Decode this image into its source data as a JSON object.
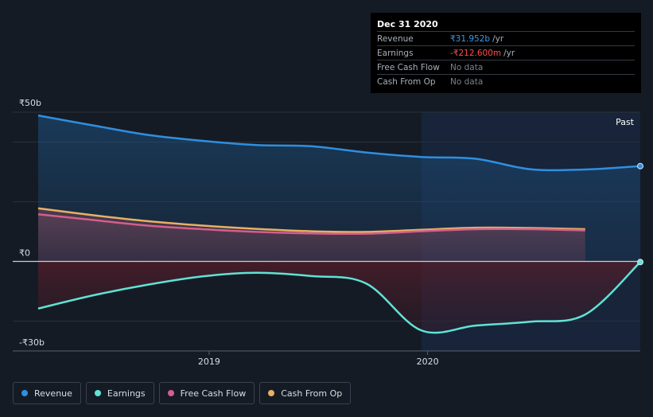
{
  "tooltip": {
    "date": "Dec 31 2020",
    "rows": [
      {
        "label": "Revenue",
        "value": "₹31.952b",
        "unit": "/yr",
        "color": "#3b9ae8"
      },
      {
        "label": "Earnings",
        "value": "-₹212.600m",
        "unit": "/yr",
        "color": "#ff4d4d"
      },
      {
        "label": "Free Cash Flow",
        "value": "No data",
        "unit": "",
        "color": "#7a818b"
      },
      {
        "label": "Cash From Op",
        "value": "No data",
        "unit": "",
        "color": "#7a818b"
      }
    ]
  },
  "legend": [
    {
      "label": "Revenue",
      "color": "#2f8fe0"
    },
    {
      "label": "Earnings",
      "color": "#5fe3d5"
    },
    {
      "label": "Free Cash Flow",
      "color": "#d45e8c"
    },
    {
      "label": "Cash From Op",
      "color": "#e8b063"
    }
  ],
  "chart_data": {
    "type": "area",
    "title": "",
    "xlabel": "",
    "ylabel": "",
    "x_ticks": [
      "2019",
      "2020"
    ],
    "y_ticks": [
      "₹50b",
      "₹0",
      "-₹30b"
    ],
    "ylim": [
      -30,
      50
    ],
    "past_label": "Past",
    "unit": "₹ billions",
    "legend_position": "bottom",
    "series": [
      {
        "name": "Revenue",
        "color": "#2f8fe0",
        "x": [
          "2018-03-31",
          "2018-06-30",
          "2018-09-30",
          "2018-12-31",
          "2019-03-31",
          "2019-06-30",
          "2019-09-30",
          "2019-12-31",
          "2020-03-31",
          "2020-06-30",
          "2020-09-30",
          "2020-12-31"
        ],
        "values": [
          48.9,
          45.6,
          42.4,
          40.4,
          39.0,
          38.6,
          36.5,
          35.0,
          34.4,
          30.9,
          30.8,
          31.95
        ]
      },
      {
        "name": "Earnings",
        "color": "#5fe3d5",
        "x": [
          "2018-03-31",
          "2018-06-30",
          "2018-09-30",
          "2018-12-31",
          "2019-03-31",
          "2019-06-30",
          "2019-09-30",
          "2019-12-31",
          "2020-03-31",
          "2020-06-30",
          "2020-09-30",
          "2020-12-31"
        ],
        "values": [
          -15.8,
          -11.4,
          -7.8,
          -5.0,
          -3.8,
          -4.9,
          -7.4,
          -23.1,
          -21.5,
          -20.2,
          -17.8,
          -0.21
        ]
      },
      {
        "name": "Free Cash Flow",
        "color": "#d45e8c",
        "x": [
          "2018-03-31",
          "2018-06-30",
          "2018-09-30",
          "2018-12-31",
          "2019-03-31",
          "2019-06-30",
          "2019-09-30",
          "2019-12-31",
          "2020-03-31",
          "2020-06-30",
          "2020-09-30"
        ],
        "values": [
          15.8,
          13.9,
          12.0,
          10.8,
          9.9,
          9.4,
          9.3,
          10.1,
          10.8,
          10.8,
          10.4
        ]
      },
      {
        "name": "Cash From Op",
        "color": "#e8b063",
        "x": [
          "2018-03-31",
          "2018-06-30",
          "2018-09-30",
          "2018-12-31",
          "2019-03-31",
          "2019-06-30",
          "2019-09-30",
          "2019-12-31",
          "2020-03-31",
          "2020-06-30",
          "2020-09-30"
        ],
        "values": [
          17.8,
          15.5,
          13.5,
          12.0,
          10.9,
          10.1,
          9.9,
          10.6,
          11.3,
          11.2,
          10.8
        ]
      }
    ]
  }
}
